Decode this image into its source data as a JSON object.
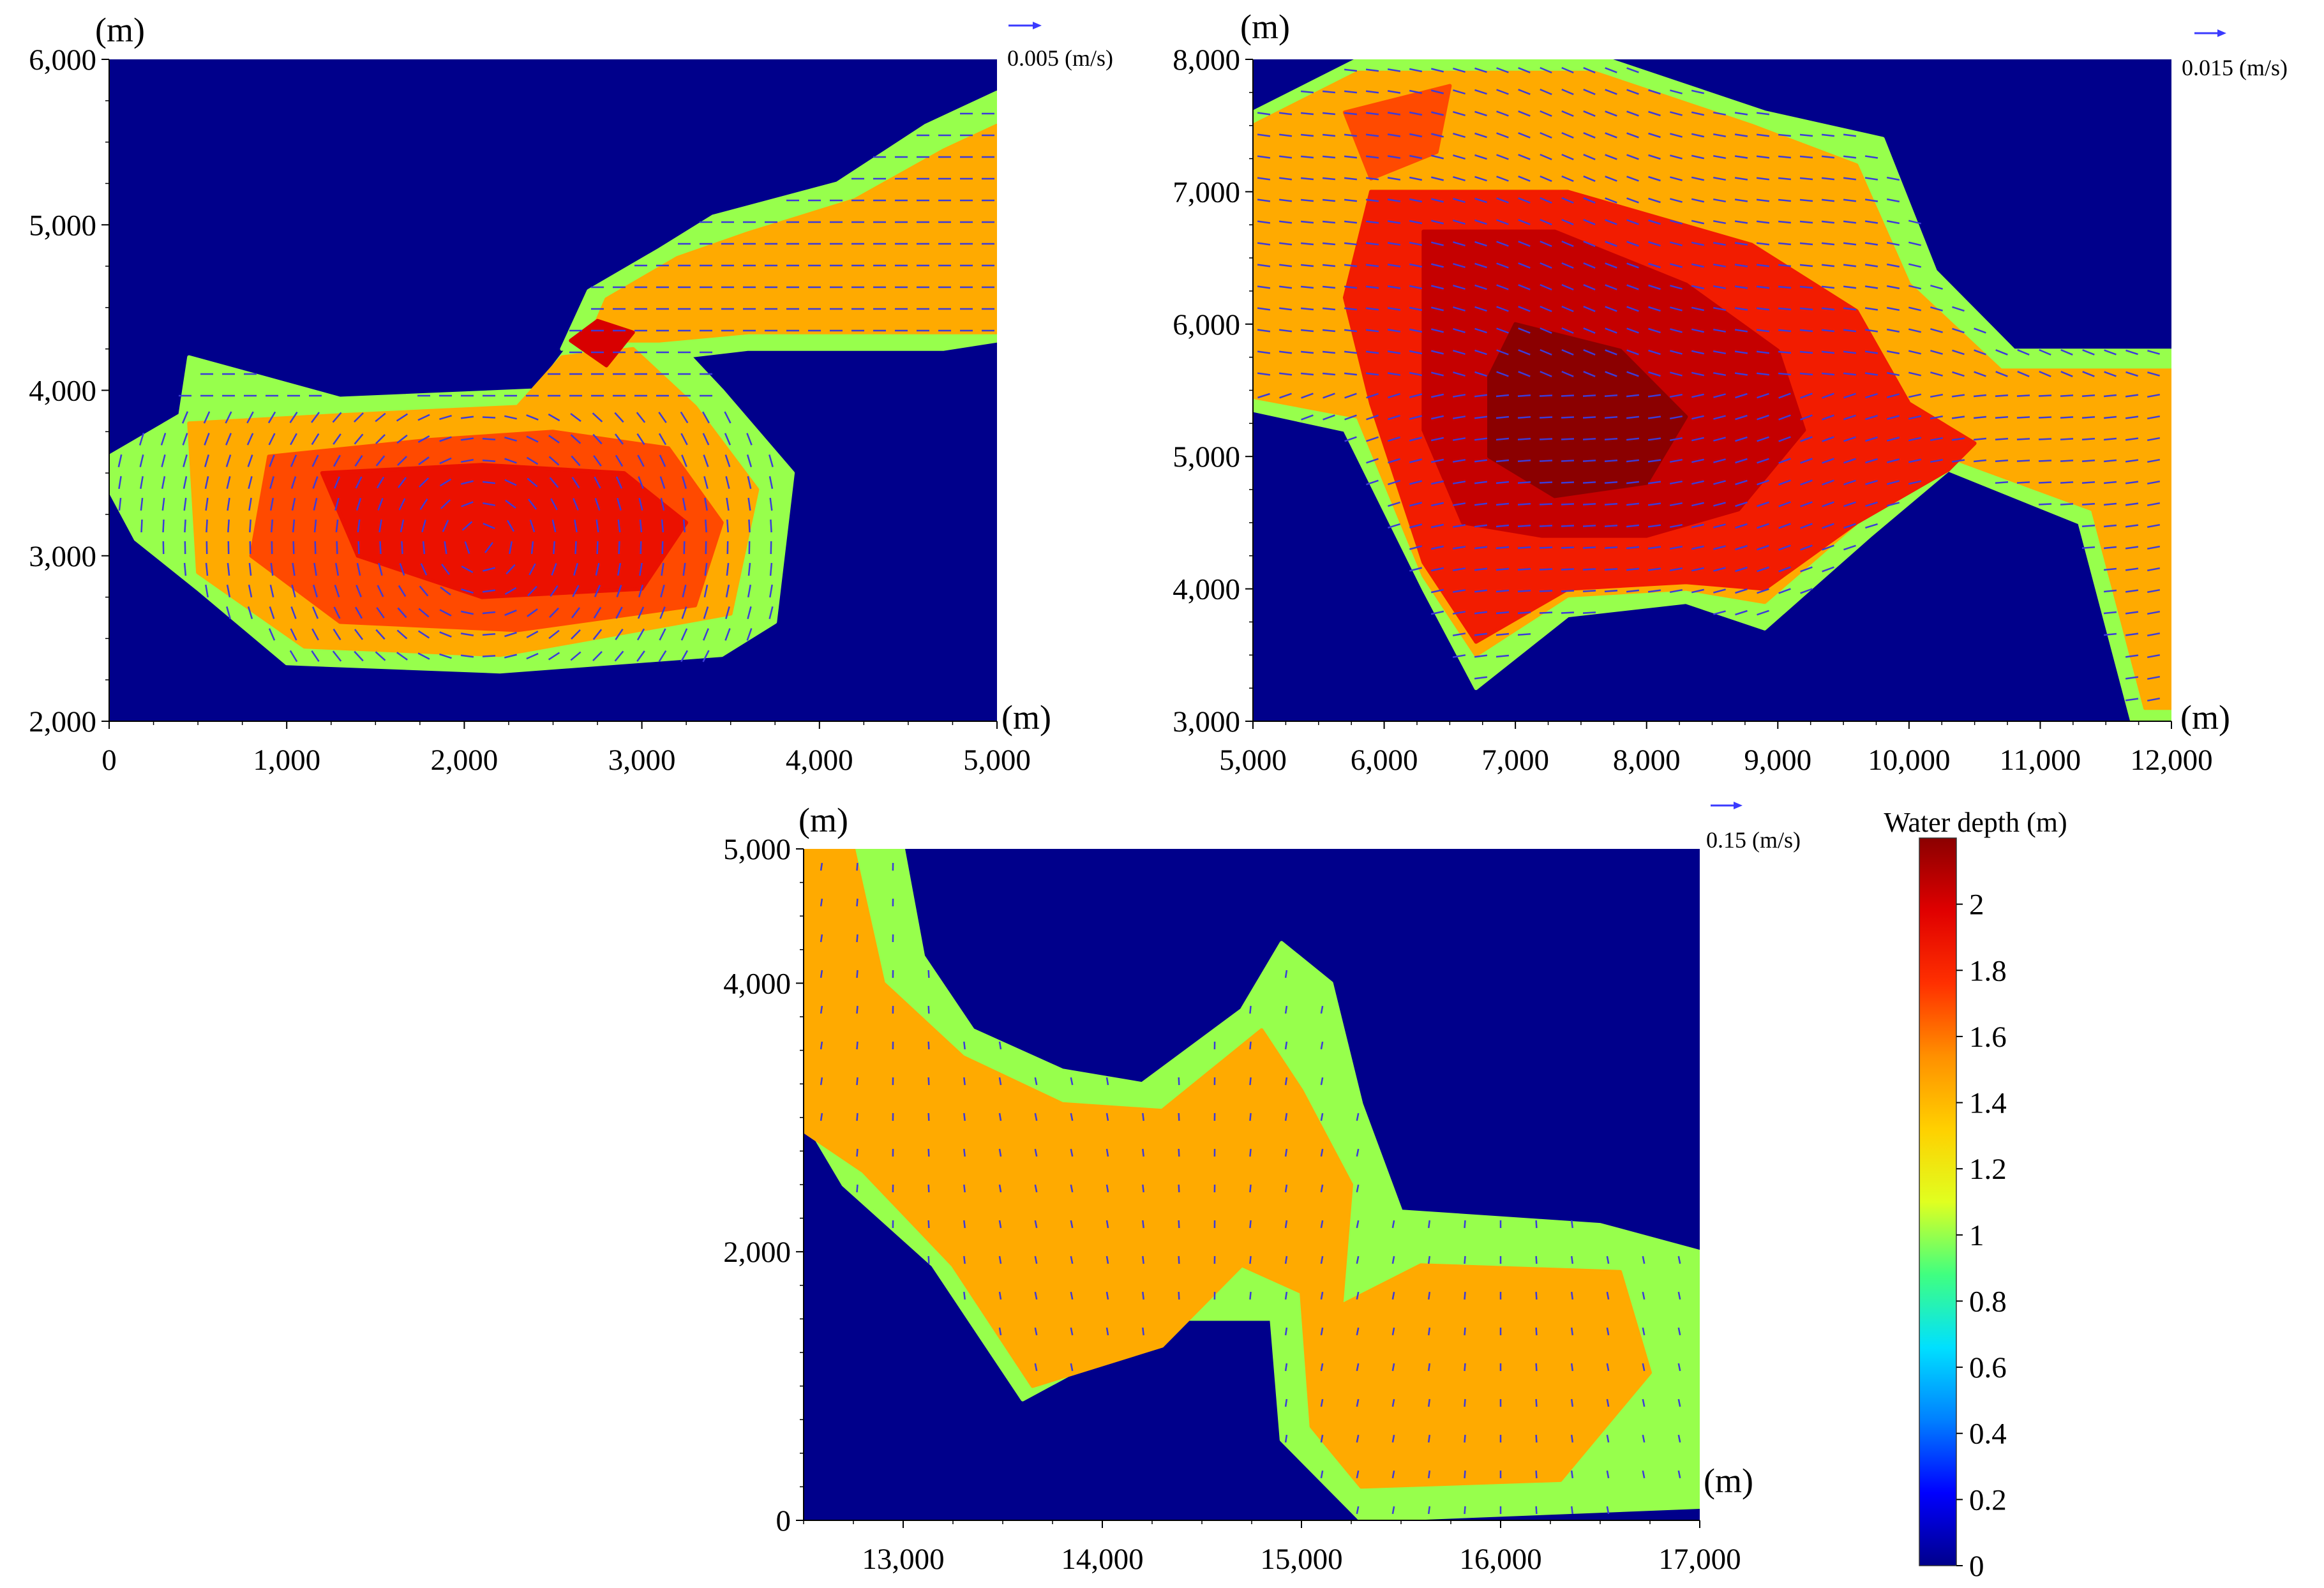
{
  "figure": {
    "colorbar": {
      "title": "Water depth  (m)",
      "min": 0,
      "max": 2.2,
      "ticks": [
        0,
        0.2,
        0.4,
        0.6,
        0.8,
        1,
        1.2,
        1.4,
        1.6,
        1.8,
        2
      ],
      "tick_labels": [
        "0",
        "0.2",
        "0.4",
        "0.6",
        "0.8",
        "1",
        "1.2",
        "1.4",
        "1.6",
        "1.8",
        "2"
      ],
      "colors": [
        "#00008b",
        "#0000ff",
        "#0080ff",
        "#00e0ff",
        "#40ff80",
        "#e0ff20",
        "#ffd000",
        "#ff9000",
        "#ff3000",
        "#e00000",
        "#8b0000"
      ]
    }
  },
  "chart_data": [
    {
      "type": "heatmap",
      "subtype": "water depth field with velocity vectors",
      "panel": "top-left",
      "x_unit_label": "(m)",
      "y_unit_label": "(m)",
      "xlim": [
        0,
        5000
      ],
      "ylim": [
        2000,
        6000
      ],
      "x_ticks": [
        0,
        1000,
        2000,
        3000,
        4000,
        5000
      ],
      "x_tick_labels": [
        "0",
        "1,000",
        "2,000",
        "3,000",
        "4,000",
        "5,000"
      ],
      "y_ticks": [
        2000,
        3000,
        4000,
        5000,
        6000
      ],
      "y_tick_labels": [
        "2,000",
        "3,000",
        "4,000",
        "5,000",
        "6,000"
      ],
      "velocity_scale_label": "0.005 (m/s)",
      "depth_zones": [
        {
          "depth": 1.0,
          "polygon": [
            [
              0,
              3600
            ],
            [
              400,
              3850
            ],
            [
              450,
              4200
            ],
            [
              1300,
              3950
            ],
            [
              2400,
              4000
            ],
            [
              2650,
              4350
            ],
            [
              3100,
              4400
            ],
            [
              3450,
              4000
            ],
            [
              3850,
              3500
            ],
            [
              3750,
              2600
            ],
            [
              3450,
              2400
            ],
            [
              2200,
              2300
            ],
            [
              1000,
              2350
            ],
            [
              500,
              2800
            ],
            [
              150,
              3100
            ],
            [
              0,
              3400
            ]
          ]
        },
        {
          "depth": 1.45,
          "polygon": [
            [
              450,
              3800
            ],
            [
              1300,
              3850
            ],
            [
              2300,
              3900
            ],
            [
              2550,
              4200
            ],
            [
              2950,
              4250
            ],
            [
              3300,
              3900
            ],
            [
              3650,
              3400
            ],
            [
              3500,
              2650
            ],
            [
              2200,
              2400
            ],
            [
              1100,
              2450
            ],
            [
              500,
              2900
            ]
          ]
        },
        {
          "depth": 1.7,
          "polygon": [
            [
              900,
              3600
            ],
            [
              1800,
              3700
            ],
            [
              2500,
              3750
            ],
            [
              3150,
              3650
            ],
            [
              3450,
              3200
            ],
            [
              3300,
              2700
            ],
            [
              2300,
              2550
            ],
            [
              1300,
              2600
            ],
            [
              800,
              3000
            ]
          ]
        },
        {
          "depth": 1.9,
          "polygon": [
            [
              1200,
              3500
            ],
            [
              2100,
              3550
            ],
            [
              2900,
              3500
            ],
            [
              3250,
              3200
            ],
            [
              3000,
              2800
            ],
            [
              2100,
              2750
            ],
            [
              1400,
              3000
            ]
          ]
        },
        {
          "depth": 1.0,
          "polygon": [
            [
              2550,
              4250
            ],
            [
              2700,
              4600
            ],
            [
              3100,
              4850
            ],
            [
              3400,
              5050
            ],
            [
              4100,
              5250
            ],
            [
              4600,
              5600
            ],
            [
              5000,
              5800
            ],
            [
              5000,
              4300
            ],
            [
              4700,
              4250
            ],
            [
              3600,
              4250
            ],
            [
              3200,
              4200
            ],
            [
              2900,
              4300
            ]
          ]
        },
        {
          "depth": 1.45,
          "polygon": [
            [
              2700,
              4300
            ],
            [
              2800,
              4550
            ],
            [
              3200,
              4800
            ],
            [
              3600,
              4950
            ],
            [
              4200,
              5150
            ],
            [
              4700,
              5450
            ],
            [
              5000,
              5600
            ],
            [
              5000,
              4350
            ],
            [
              4600,
              4350
            ],
            [
              3600,
              4350
            ],
            [
              3100,
              4300
            ]
          ]
        },
        {
          "depth": 2.0,
          "polygon": [
            [
              2600,
              4300
            ],
            [
              2750,
              4420
            ],
            [
              2950,
              4350
            ],
            [
              2800,
              4150
            ]
          ]
        }
      ],
      "velocity_direction": "circulating in lower basin, eastward along upper channel"
    },
    {
      "type": "heatmap",
      "subtype": "water depth field with velocity vectors",
      "panel": "top-right",
      "x_unit_label": "(m)",
      "y_unit_label": "(m)",
      "xlim": [
        5000,
        12000
      ],
      "ylim": [
        3000,
        8000
      ],
      "x_ticks": [
        5000,
        6000,
        7000,
        8000,
        9000,
        10000,
        11000,
        12000
      ],
      "x_tick_labels": [
        "5,000",
        "6,000",
        "7,000",
        "8,000",
        "9,000",
        "10,000",
        "11,000",
        "12,000"
      ],
      "y_ticks": [
        3000,
        4000,
        5000,
        6000,
        7000,
        8000
      ],
      "y_tick_labels": [
        "3,000",
        "4,000",
        "5,000",
        "6,000",
        "7,000",
        "8,000"
      ],
      "velocity_scale_label": "0.015 (m/s)",
      "depth_zones": [
        {
          "depth": 1.0,
          "polygon": [
            [
              5000,
              7600
            ],
            [
              5800,
              8000
            ],
            [
              7700,
              8000
            ],
            [
              8900,
              7600
            ],
            [
              9800,
              7400
            ],
            [
              10200,
              6400
            ],
            [
              10800,
              5800
            ],
            [
              11500,
              5800
            ],
            [
              12000,
              5800
            ],
            [
              12000,
              3000
            ],
            [
              11700,
              3000
            ],
            [
              11300,
              4500
            ],
            [
              10300,
              4900
            ],
            [
              9700,
              4400
            ],
            [
              8900,
              3700
            ],
            [
              8300,
              3900
            ],
            [
              7400,
              3800
            ],
            [
              6700,
              3250
            ],
            [
              6300,
              4000
            ],
            [
              5700,
              5200
            ],
            [
              5000,
              5350
            ]
          ]
        },
        {
          "depth": 1.45,
          "polygon": [
            [
              5000,
              7500
            ],
            [
              5800,
              7900
            ],
            [
              7600,
              7900
            ],
            [
              8800,
              7500
            ],
            [
              9600,
              7200
            ],
            [
              10000,
              6300
            ],
            [
              10700,
              5650
            ],
            [
              12000,
              5650
            ],
            [
              12000,
              3100
            ],
            [
              11800,
              3100
            ],
            [
              11400,
              4600
            ],
            [
              10300,
              5000
            ],
            [
              9600,
              4500
            ],
            [
              8900,
              3900
            ],
            [
              8300,
              4000
            ],
            [
              7400,
              3950
            ],
            [
              6700,
              3500
            ],
            [
              6300,
              4100
            ],
            [
              5800,
              5300
            ],
            [
              5000,
              5450
            ]
          ]
        },
        {
          "depth": 1.7,
          "polygon": [
            [
              5700,
              7600
            ],
            [
              6500,
              7800
            ],
            [
              6400,
              7300
            ],
            [
              5900,
              7100
            ]
          ]
        },
        {
          "depth": 1.85,
          "polygon": [
            [
              5900,
              7000
            ],
            [
              7400,
              7000
            ],
            [
              8800,
              6600
            ],
            [
              9600,
              6100
            ],
            [
              10000,
              5400
            ],
            [
              10500,
              5100
            ],
            [
              10300,
              4900
            ],
            [
              9600,
              4500
            ],
            [
              8900,
              4000
            ],
            [
              8300,
              4050
            ],
            [
              7400,
              4000
            ],
            [
              6700,
              3600
            ],
            [
              6300,
              4200
            ],
            [
              5900,
              5400
            ],
            [
              5700,
              6200
            ]
          ]
        },
        {
          "depth": 2.05,
          "polygon": [
            [
              6300,
              6700
            ],
            [
              7300,
              6700
            ],
            [
              8300,
              6300
            ],
            [
              9000,
              5800
            ],
            [
              9200,
              5200
            ],
            [
              8700,
              4600
            ],
            [
              8000,
              4400
            ],
            [
              7200,
              4400
            ],
            [
              6600,
              4500
            ],
            [
              6300,
              5200
            ]
          ]
        },
        {
          "depth": 2.2,
          "polygon": [
            [
              7000,
              6000
            ],
            [
              7800,
              5800
            ],
            [
              8300,
              5300
            ],
            [
              8000,
              4800
            ],
            [
              7300,
              4700
            ],
            [
              6800,
              5000
            ],
            [
              6800,
              5600
            ]
          ]
        }
      ],
      "velocity_direction": "eastward through central basin toward outlet at right"
    },
    {
      "type": "heatmap",
      "subtype": "water depth field with velocity vectors",
      "panel": "bottom",
      "x_unit_label": "(m)",
      "y_unit_label": "(m)",
      "xlim": [
        12500,
        17000
      ],
      "ylim": [
        0,
        5000
      ],
      "x_ticks": [
        13000,
        14000,
        15000,
        16000,
        17000
      ],
      "x_tick_labels": [
        "13,000",
        "14,000",
        "15,000",
        "16,000",
        "17,000"
      ],
      "y_ticks": [
        0,
        2000,
        4000,
        5000
      ],
      "y_tick_labels": [
        "0",
        "2,000",
        "4,000",
        "5,000"
      ],
      "velocity_scale_label": "0.15 (m/s)",
      "depth_zones": [
        {
          "depth": 1.0,
          "polygon": [
            [
              12500,
              5000
            ],
            [
              13000,
              5000
            ],
            [
              13100,
              4200
            ],
            [
              13350,
              3650
            ],
            [
              13800,
              3350
            ],
            [
              14200,
              3250
            ],
            [
              14700,
              3800
            ],
            [
              14900,
              4300
            ],
            [
              15150,
              4000
            ],
            [
              15300,
              3100
            ],
            [
              15500,
              2300
            ],
            [
              16500,
              2200
            ],
            [
              17000,
              2000
            ],
            [
              17000,
              100
            ],
            [
              15300,
              0
            ],
            [
              14900,
              600
            ],
            [
              14850,
              1500
            ],
            [
              14350,
              1500
            ],
            [
              13600,
              900
            ],
            [
              13150,
              1900
            ],
            [
              12700,
              2500
            ],
            [
              12500,
              3000
            ]
          ]
        },
        {
          "depth": 1.45,
          "polygon": [
            [
              12500,
              5000
            ],
            [
              12750,
              5000
            ],
            [
              12900,
              4000
            ],
            [
              13300,
              3450
            ],
            [
              13800,
              3100
            ],
            [
              14300,
              3050
            ],
            [
              14800,
              3650
            ],
            [
              15000,
              3200
            ],
            [
              15250,
              2500
            ],
            [
              15200,
              1600
            ],
            [
              15600,
              1900
            ],
            [
              16600,
              1850
            ],
            [
              16750,
              1100
            ],
            [
              16300,
              300
            ],
            [
              15300,
              250
            ],
            [
              15050,
              700
            ],
            [
              15000,
              1700
            ],
            [
              14700,
              1900
            ],
            [
              14300,
              1300
            ],
            [
              13650,
              1000
            ],
            [
              13250,
              1900
            ],
            [
              12800,
              2600
            ],
            [
              12500,
              2900
            ]
          ]
        }
      ],
      "velocity_direction": "southward through channel into lower-right basin"
    }
  ]
}
